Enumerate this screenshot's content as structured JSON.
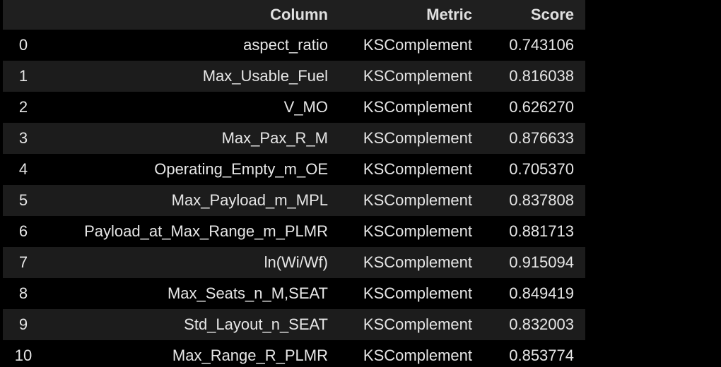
{
  "table": {
    "headers": {
      "index": "",
      "column": "Column",
      "metric": "Metric",
      "score": "Score"
    },
    "rows": [
      {
        "index": "0",
        "column": "aspect_ratio",
        "metric": "KSComplement",
        "score": "0.743106"
      },
      {
        "index": "1",
        "column": "Max_Usable_Fuel",
        "metric": "KSComplement",
        "score": "0.816038"
      },
      {
        "index": "2",
        "column": "V_MO",
        "metric": "KSComplement",
        "score": "0.626270"
      },
      {
        "index": "3",
        "column": "Max_Pax_R_M",
        "metric": "KSComplement",
        "score": "0.876633"
      },
      {
        "index": "4",
        "column": "Operating_Empty_m_OE",
        "metric": "KSComplement",
        "score": "0.705370"
      },
      {
        "index": "5",
        "column": "Max_Payload_m_MPL",
        "metric": "KSComplement",
        "score": "0.837808"
      },
      {
        "index": "6",
        "column": "Payload_at_Max_Range_m_PLMR",
        "metric": "KSComplement",
        "score": "0.881713"
      },
      {
        "index": "7",
        "column": "ln(Wi/Wf)",
        "metric": "KSComplement",
        "score": "0.915094"
      },
      {
        "index": "8",
        "column": "Max_Seats_n_M,SEAT",
        "metric": "KSComplement",
        "score": "0.849419"
      },
      {
        "index": "9",
        "column": "Std_Layout_n_SEAT",
        "metric": "KSComplement",
        "score": "0.832003"
      },
      {
        "index": "10",
        "column": "Max_Range_R_PLMR",
        "metric": "KSComplement",
        "score": "0.853774"
      }
    ]
  },
  "colors": {
    "background": "#000000",
    "header_background": "#1f1f1f",
    "stripe": "#1c1c1c",
    "text": "#e6e6e6"
  }
}
